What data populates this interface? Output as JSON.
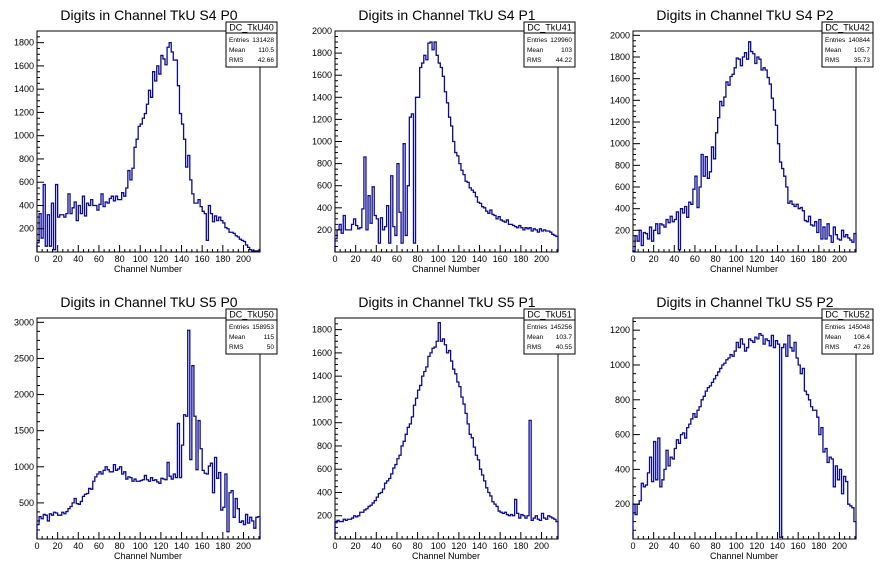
{
  "chart_data": [
    {
      "type": "histogram",
      "title": "Digits in Channel TkU S4 P0",
      "xlabel": "Channel Number",
      "xlim": [
        0,
        216
      ],
      "ylim": [
        0,
        1900
      ],
      "xticks": [
        "0",
        "20",
        "40",
        "60",
        "80",
        "100",
        "120",
        "140",
        "160",
        "180",
        "200"
      ],
      "yticks": [
        "200",
        "400",
        "600",
        "800",
        "1000",
        "1200",
        "1400",
        "1600",
        "1800"
      ],
      "xtick_values": [
        0,
        20,
        40,
        60,
        80,
        100,
        120,
        140,
        160,
        180,
        200
      ],
      "ytick_values": [
        200,
        400,
        600,
        800,
        1000,
        1200,
        1400,
        1600,
        1800
      ],
      "stats": {
        "name": "DC_TkU40",
        "rows": [
          [
            "Entries",
            "131428"
          ],
          [
            "Mean",
            "110.5"
          ],
          [
            "RMS",
            "42.66"
          ]
        ]
      },
      "bins": {
        "start": 0,
        "width": 2,
        "values": [
          80,
          330,
          120,
          580,
          50,
          320,
          50,
          420,
          20,
          580,
          300,
          320,
          320,
          300,
          330,
          500,
          330,
          380,
          430,
          270,
          400,
          330,
          480,
          310,
          420,
          400,
          450,
          400,
          400,
          360,
          410,
          500,
          390,
          430,
          420,
          460,
          480,
          440,
          480,
          450,
          450,
          510,
          480,
          550,
          700,
          620,
          720,
          900,
          970,
          1080,
          1100,
          1150,
          1190,
          1270,
          1390,
          1330,
          1550,
          1470,
          1600,
          1530,
          1690,
          1660,
          1610,
          1760,
          1800,
          1720,
          1650,
          1650,
          1430,
          1190,
          1100,
          970,
          730,
          830,
          620,
          500,
          420,
          420,
          450,
          390,
          350,
          330,
          100,
          400,
          330,
          260,
          310,
          270,
          300,
          270,
          250,
          210,
          200,
          170,
          170,
          160,
          140,
          130,
          110,
          100,
          90,
          60,
          40,
          20,
          10,
          10,
          10,
          10
        ]
      }
    },
    {
      "type": "histogram",
      "title": "Digits in Channel TkU S4 P1",
      "xlabel": "Channel Number",
      "xlim": [
        0,
        216
      ],
      "ylim": [
        0,
        2000
      ],
      "xticks": [
        "0",
        "20",
        "40",
        "60",
        "80",
        "100",
        "120",
        "140",
        "160",
        "180",
        "200"
      ],
      "yticks": [
        "200",
        "400",
        "600",
        "800",
        "1000",
        "1200",
        "1400",
        "1600",
        "1800",
        "2000"
      ],
      "xtick_values": [
        0,
        20,
        40,
        60,
        80,
        100,
        120,
        140,
        160,
        180,
        200
      ],
      "ytick_values": [
        200,
        400,
        600,
        800,
        1000,
        1200,
        1400,
        1600,
        1800,
        2000
      ],
      "stats": {
        "name": "DC_TkU41",
        "rows": [
          [
            "Entries",
            "129960"
          ],
          [
            "Mean",
            "103"
          ],
          [
            "RMS",
            "44.22"
          ]
        ]
      },
      "bins": {
        "start": 0,
        "width": 2,
        "values": [
          120,
          200,
          250,
          170,
          330,
          200,
          200,
          200,
          250,
          300,
          240,
          210,
          220,
          390,
          860,
          200,
          510,
          260,
          590,
          330,
          300,
          80,
          310,
          200,
          230,
          420,
          80,
          690,
          230,
          150,
          800,
          360,
          80,
          980,
          150,
          600,
          1220,
          1250,
          80,
          1400,
          1400,
          1670,
          1710,
          1780,
          1740,
          1890,
          1900,
          1830,
          1900,
          1780,
          1710,
          1670,
          1590,
          1450,
          1350,
          1220,
          1140,
          1000,
          900,
          870,
          800,
          740,
          700,
          640,
          630,
          580,
          560,
          540,
          500,
          450,
          440,
          410,
          400,
          370,
          350,
          380,
          340,
          330,
          300,
          320,
          290,
          280,
          270,
          290,
          250,
          250,
          240,
          230,
          220,
          240,
          220,
          200,
          220,
          210,
          220,
          190,
          210,
          200,
          180,
          210,
          190,
          200,
          190,
          190,
          180,
          160,
          150,
          140
        ]
      }
    },
    {
      "type": "histogram",
      "title": "Digits in Channel TkU S4 P2",
      "xlabel": "Channel Number",
      "xlim": [
        0,
        216
      ],
      "ylim": [
        0,
        2040
      ],
      "xticks": [
        "0",
        "20",
        "40",
        "60",
        "80",
        "100",
        "120",
        "140",
        "160",
        "180",
        "200"
      ],
      "yticks": [
        "200",
        "400",
        "600",
        "800",
        "1000",
        "1200",
        "1400",
        "1600",
        "1800",
        "2000"
      ],
      "xtick_values": [
        0,
        20,
        40,
        60,
        80,
        100,
        120,
        140,
        160,
        180,
        200
      ],
      "ytick_values": [
        200,
        400,
        600,
        800,
        1000,
        1200,
        1400,
        1600,
        1800,
        2000
      ],
      "stats": {
        "name": "DC_TkU42",
        "rows": [
          [
            "Entries",
            "140844"
          ],
          [
            "Mean",
            "105.7"
          ],
          [
            "RMS",
            "35.73"
          ]
        ]
      },
      "bins": {
        "start": 0,
        "width": 2,
        "values": [
          10,
          150,
          100,
          200,
          60,
          180,
          170,
          120,
          230,
          100,
          200,
          260,
          170,
          260,
          250,
          230,
          300,
          270,
          330,
          280,
          300,
          370,
          20,
          400,
          360,
          420,
          320,
          460,
          440,
          580,
          700,
          410,
          600,
          900,
          700,
          880,
          680,
          740,
          970,
          860,
          1100,
          1240,
          1390,
          1350,
          1430,
          1570,
          1540,
          1620,
          1640,
          1700,
          1790,
          1780,
          1720,
          1800,
          1840,
          1780,
          1940,
          1850,
          1830,
          1740,
          1800,
          1780,
          1680,
          1700,
          1680,
          1610,
          1550,
          1420,
          1310,
          1170,
          1000,
          830,
          770,
          700,
          600,
          450,
          470,
          440,
          420,
          440,
          400,
          410,
          380,
          290,
          280,
          330,
          250,
          240,
          280,
          180,
          300,
          120,
          230,
          120,
          260,
          150,
          90,
          230,
          160,
          120,
          110,
          200,
          140,
          160,
          130,
          110,
          90,
          170
        ]
      }
    },
    {
      "type": "histogram",
      "title": "Digits in Channel TkU S5 P0",
      "xlabel": "Channel Number",
      "xlim": [
        0,
        216
      ],
      "ylim": [
        0,
        3060
      ],
      "xticks": [
        "0",
        "20",
        "40",
        "60",
        "80",
        "100",
        "120",
        "140",
        "160",
        "180",
        "200"
      ],
      "yticks": [
        "500",
        "1000",
        "1500",
        "2000",
        "2500",
        "3000"
      ],
      "xtick_values": [
        0,
        20,
        40,
        60,
        80,
        100,
        120,
        140,
        160,
        180,
        200
      ],
      "ytick_values": [
        500,
        1000,
        1500,
        2000,
        2500,
        3000
      ],
      "stats": {
        "name": "DC_TkU50",
        "rows": [
          [
            "Entries",
            "158953"
          ],
          [
            "Mean",
            "115"
          ],
          [
            "RMS",
            "50"
          ]
        ]
      },
      "bins": {
        "start": 0,
        "width": 2,
        "values": [
          200,
          310,
          280,
          340,
          330,
          250,
          350,
          330,
          370,
          360,
          330,
          330,
          370,
          350,
          380,
          420,
          450,
          500,
          560,
          490,
          480,
          520,
          590,
          620,
          630,
          700,
          690,
          800,
          860,
          900,
          930,
          900,
          950,
          1000,
          960,
          930,
          930,
          1030,
          950,
          970,
          1000,
          900,
          930,
          830,
          860,
          850,
          800,
          830,
          800,
          800,
          810,
          820,
          880,
          820,
          800,
          850,
          810,
          820,
          790,
          770,
          840,
          830,
          820,
          1060,
          870,
          830,
          900,
          850,
          1600,
          850,
          1300,
          1720,
          1700,
          2890,
          1100,
          2400,
          1700,
          960,
          1640,
          1250,
          950,
          910,
          900,
          1010,
          1050,
          640,
          1130,
          840,
          920,
          400,
          440,
          900,
          100,
          640,
          670,
          300,
          560,
          420,
          230,
          250,
          200,
          340,
          220,
          300,
          250,
          150,
          300,
          310
        ]
      }
    },
    {
      "type": "histogram",
      "title": "Digits in Channel TkU S5 P1",
      "xlabel": "Channel Number",
      "xlim": [
        0,
        216
      ],
      "ylim": [
        0,
        1900
      ],
      "xticks": [
        "0",
        "20",
        "40",
        "60",
        "80",
        "100",
        "120",
        "140",
        "160",
        "180",
        "200"
      ],
      "yticks": [
        "200",
        "400",
        "600",
        "800",
        "1000",
        "1200",
        "1400",
        "1600",
        "1800"
      ],
      "xtick_values": [
        0,
        20,
        40,
        60,
        80,
        100,
        120,
        140,
        160,
        180,
        200
      ],
      "ytick_values": [
        200,
        400,
        600,
        800,
        1000,
        1200,
        1400,
        1600,
        1800
      ],
      "stats": {
        "name": "DC_TkU51",
        "rows": [
          [
            "Entries",
            "145256"
          ],
          [
            "Mean",
            "103.7"
          ],
          [
            "RMS",
            "40.55"
          ]
        ]
      },
      "bins": {
        "start": 0,
        "width": 2,
        "values": [
          140,
          160,
          150,
          150,
          170,
          160,
          170,
          170,
          180,
          200,
          190,
          200,
          230,
          230,
          250,
          260,
          280,
          290,
          310,
          330,
          360,
          390,
          400,
          430,
          480,
          500,
          520,
          560,
          610,
          640,
          690,
          720,
          800,
          840,
          900,
          960,
          990,
          1050,
          1150,
          1210,
          1280,
          1320,
          1400,
          1440,
          1480,
          1570,
          1600,
          1640,
          1650,
          1700,
          1860,
          1700,
          1720,
          1670,
          1600,
          1620,
          1530,
          1460,
          1420,
          1350,
          1310,
          1220,
          1160,
          1080,
          990,
          900,
          870,
          790,
          720,
          680,
          600,
          550,
          500,
          440,
          400,
          370,
          320,
          300,
          280,
          240,
          230,
          220,
          230,
          210,
          200,
          210,
          200,
          340,
          220,
          180,
          210,
          200,
          180,
          200,
          1020,
          160,
          180,
          200,
          170,
          160,
          220,
          180,
          170,
          200,
          190,
          180,
          170,
          150
        ]
      }
    },
    {
      "type": "histogram",
      "title": "Digits in Channel TkU S5 P2",
      "xlabel": "Channel Number",
      "xlim": [
        0,
        216
      ],
      "ylim": [
        0,
        1270
      ],
      "xticks": [
        "0",
        "20",
        "40",
        "60",
        "80",
        "100",
        "120",
        "140",
        "160",
        "180",
        "200"
      ],
      "yticks": [
        "200",
        "400",
        "600",
        "800",
        "1000",
        "1200"
      ],
      "xtick_values": [
        0,
        20,
        40,
        60,
        80,
        100,
        120,
        140,
        160,
        180,
        200
      ],
      "ytick_values": [
        200,
        400,
        600,
        800,
        1000,
        1200
      ],
      "stats": {
        "name": "DC_TkU52",
        "rows": [
          [
            "Entries",
            "145048"
          ],
          [
            "Mean",
            "106.4"
          ],
          [
            "RMS",
            "47.26"
          ]
        ]
      },
      "bins": {
        "start": 0,
        "width": 2,
        "values": [
          200,
          140,
          200,
          220,
          320,
          300,
          310,
          380,
          470,
          330,
          560,
          340,
          580,
          300,
          340,
          400,
          510,
          420,
          470,
          460,
          520,
          570,
          550,
          600,
          610,
          580,
          640,
          660,
          690,
          720,
          700,
          740,
          760,
          800,
          820,
          850,
          870,
          880,
          900,
          920,
          940,
          960,
          980,
          1000,
          1010,
          1030,
          1040,
          1060,
          1050,
          1080,
          1130,
          1100,
          1150,
          1120,
          1080,
          1100,
          1150,
          1140,
          1130,
          1160,
          1150,
          1180,
          1170,
          1120,
          1150,
          1140,
          1110,
          1170,
          1100,
          1140,
          1120,
          10,
          1100,
          1120,
          1050,
          1170,
          1100,
          1080,
          1130,
          1040,
          1000,
          950,
          980,
          850,
          830,
          800,
          760,
          740,
          740,
          700,
          600,
          640,
          500,
          520,
          440,
          470,
          460,
          300,
          420,
          340,
          400,
          260,
          360,
          330,
          200,
          190,
          180,
          100
        ]
      }
    }
  ]
}
